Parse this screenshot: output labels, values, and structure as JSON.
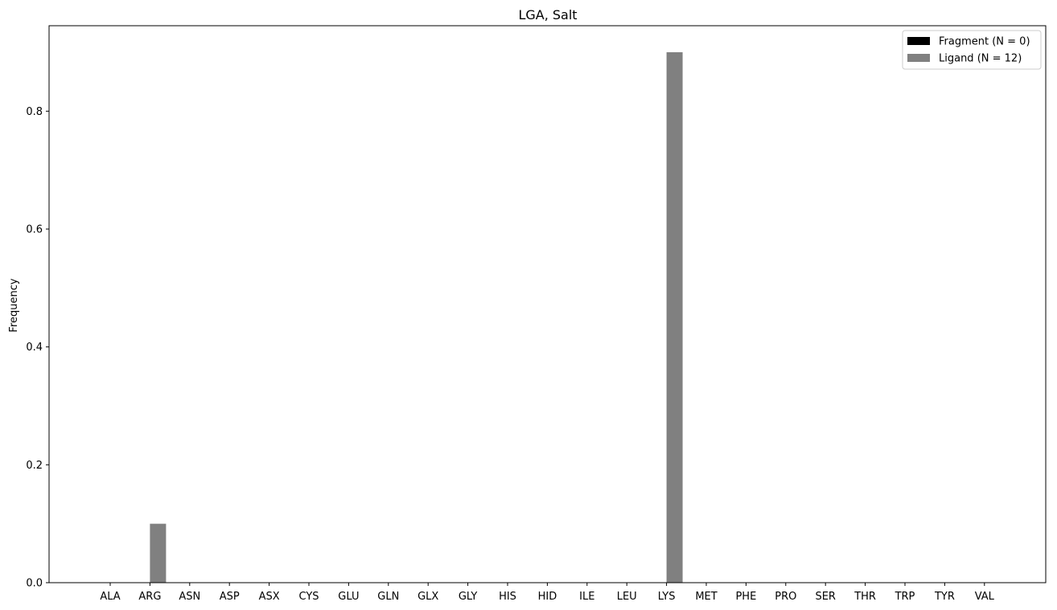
{
  "chart_data": {
    "type": "bar",
    "title": "LGA, Salt",
    "xlabel": "",
    "ylabel": "Frequency",
    "categories": [
      "ALA",
      "ARG",
      "ASN",
      "ASP",
      "ASX",
      "CYS",
      "GLU",
      "GLN",
      "GLX",
      "GLY",
      "HIS",
      "HID",
      "ILE",
      "LEU",
      "LYS",
      "MET",
      "PHE",
      "PRO",
      "SER",
      "THR",
      "TRP",
      "TYR",
      "VAL"
    ],
    "series": [
      {
        "name": "Fragment (N = 0)",
        "color": "#000000",
        "values": [
          0,
          0,
          0,
          0,
          0,
          0,
          0,
          0,
          0,
          0,
          0,
          0,
          0,
          0,
          0,
          0,
          0,
          0,
          0,
          0,
          0,
          0,
          0
        ]
      },
      {
        "name": "Ligand (N = 12)",
        "color": "#808080",
        "values": [
          0,
          0.1,
          0,
          0,
          0,
          0,
          0,
          0,
          0,
          0,
          0,
          0,
          0,
          0,
          0.9,
          0,
          0,
          0,
          0,
          0,
          0,
          0,
          0
        ]
      }
    ],
    "ylim": [
      0,
      0.945
    ],
    "yticks": [
      "0.0",
      "0.2",
      "0.4",
      "0.6",
      "0.8"
    ],
    "legend_position": "top-right",
    "grid": false
  }
}
